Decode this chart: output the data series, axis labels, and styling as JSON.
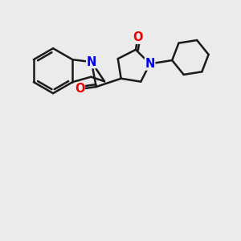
{
  "bg_color": "#ebebeb",
  "bond_color": "#1a1a1a",
  "N_color": "#0000ee",
  "O_color": "#ee0000",
  "bond_width": 1.8,
  "font_size_atom": 10.5,
  "xlim": [
    0,
    10
  ],
  "ylim": [
    0,
    10
  ]
}
